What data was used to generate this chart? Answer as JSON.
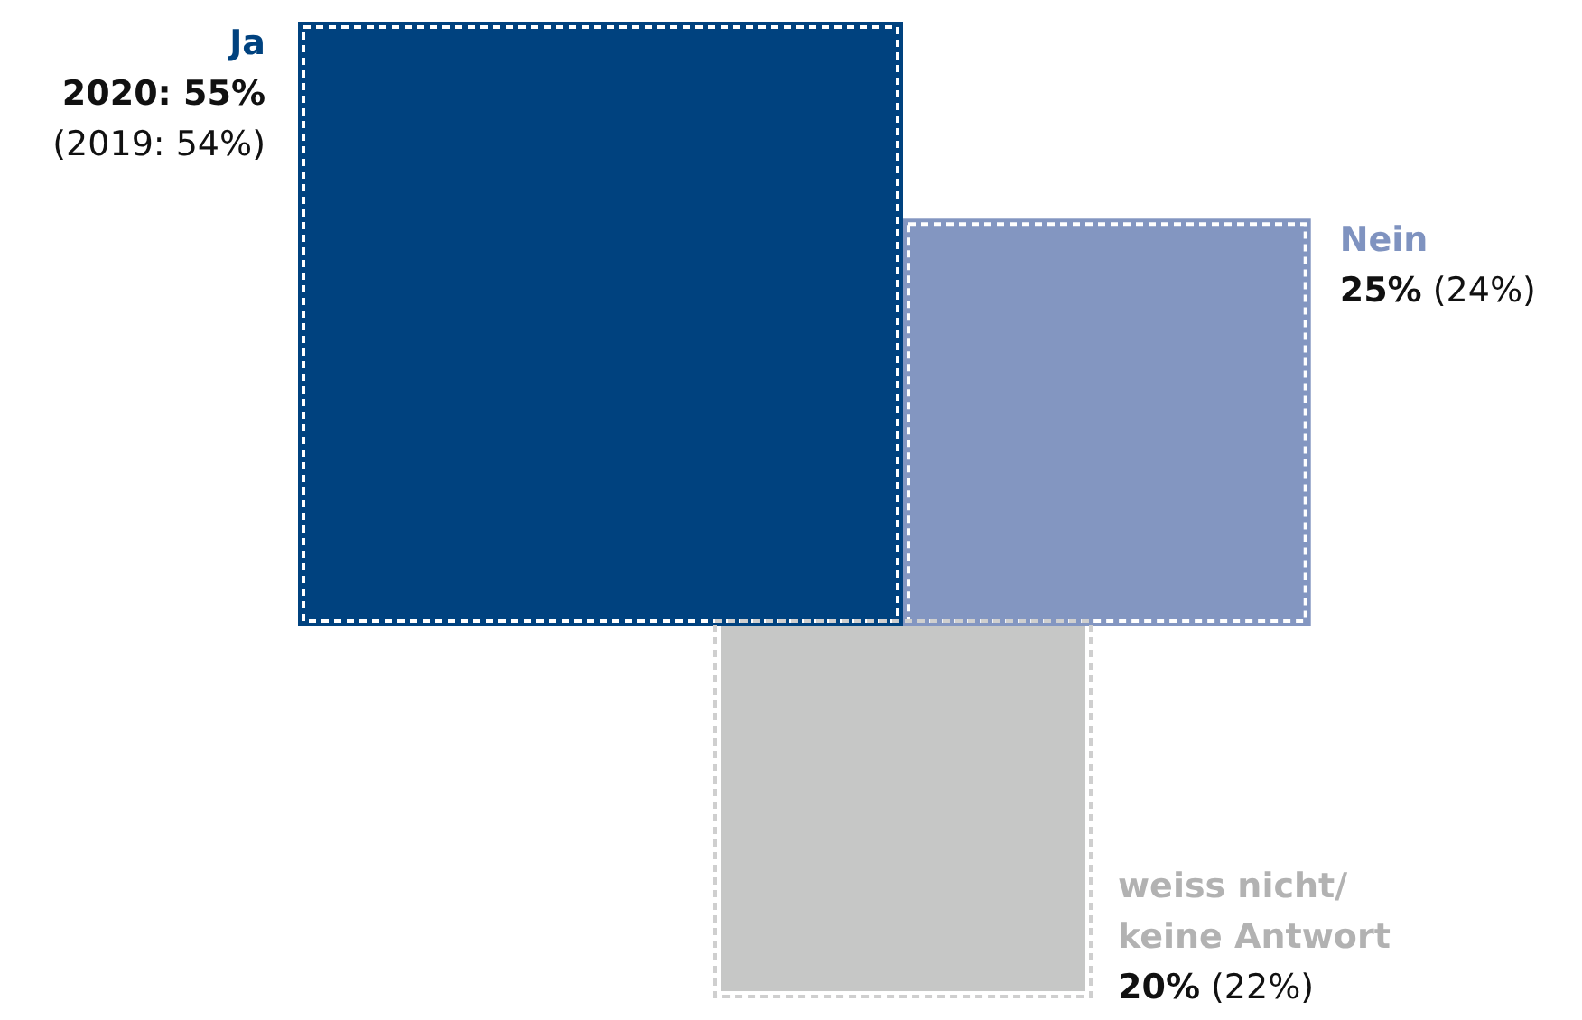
{
  "chart_data": {
    "type": "other",
    "categories": [
      "Ja",
      "Nein",
      "weiss nicht/ keine Antwort"
    ],
    "series": [
      {
        "colors": [
          "#00427f",
          "#8396c1",
          "#c6c7c6"
        ],
        "values": [
          55,
          25,
          20
        ],
        "value_labels": [
          "2020: 55%",
          "25%",
          "20%"
        ]
      }
    ],
    "annotations": [
      "(2019: 54%)",
      "(24%)",
      "(22%)"
    ]
  }
}
